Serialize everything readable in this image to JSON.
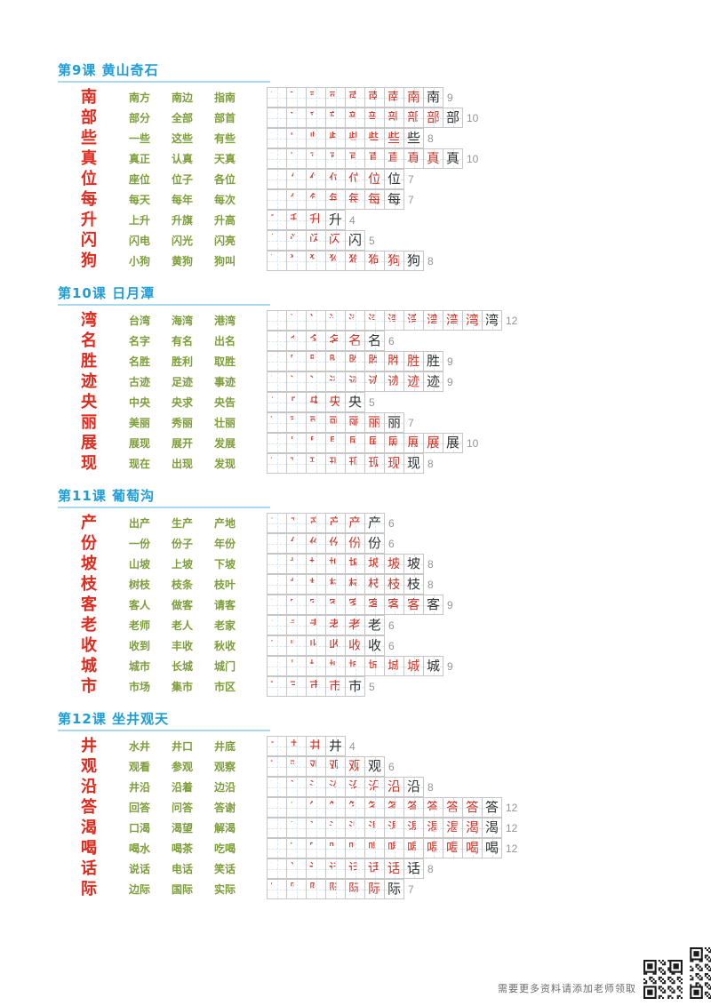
{
  "footer": {
    "text": "需要更多资料请添加老师领取"
  },
  "colors": {
    "title_blue": "#1d9ed9",
    "char_red": "#e02a1e",
    "word_green": "#7d9e3a",
    "stroke_red": "#d4382a",
    "final_black": "#333333",
    "count_gray": "#949494"
  },
  "sections": [
    {
      "title": "第9课 黄山奇石",
      "rows": [
        {
          "char": "南",
          "strokes": 9,
          "words": [
            "南方",
            "南边",
            "指南"
          ]
        },
        {
          "char": "部",
          "strokes": 10,
          "words": [
            "部分",
            "全部",
            "部首"
          ]
        },
        {
          "char": "些",
          "strokes": 8,
          "words": [
            "一些",
            "这些",
            "有些"
          ]
        },
        {
          "char": "真",
          "strokes": 10,
          "words": [
            "真正",
            "认真",
            "天真"
          ]
        },
        {
          "char": "位",
          "strokes": 7,
          "words": [
            "座位",
            "位子",
            "各位"
          ]
        },
        {
          "char": "每",
          "strokes": 7,
          "words": [
            "每天",
            "每年",
            "每次"
          ]
        },
        {
          "char": "升",
          "strokes": 4,
          "words": [
            "上升",
            "升旗",
            "升高"
          ]
        },
        {
          "char": "闪",
          "strokes": 5,
          "words": [
            "闪电",
            "闪光",
            "闪亮"
          ]
        },
        {
          "char": "狗",
          "strokes": 8,
          "words": [
            "小狗",
            "黄狗",
            "狗叫"
          ]
        }
      ]
    },
    {
      "title": "第10课 日月潭",
      "rows": [
        {
          "char": "湾",
          "strokes": 12,
          "words": [
            "台湾",
            "海湾",
            "港湾"
          ]
        },
        {
          "char": "名",
          "strokes": 6,
          "words": [
            "名字",
            "有名",
            "出名"
          ]
        },
        {
          "char": "胜",
          "strokes": 9,
          "words": [
            "名胜",
            "胜利",
            "取胜"
          ]
        },
        {
          "char": "迹",
          "strokes": 9,
          "words": [
            "古迹",
            "足迹",
            "事迹"
          ]
        },
        {
          "char": "央",
          "strokes": 5,
          "words": [
            "中央",
            "央求",
            "央告"
          ]
        },
        {
          "char": "丽",
          "strokes": 7,
          "words": [
            "美丽",
            "秀丽",
            "壮丽"
          ]
        },
        {
          "char": "展",
          "strokes": 10,
          "words": [
            "展现",
            "展开",
            "发展"
          ]
        },
        {
          "char": "现",
          "strokes": 8,
          "words": [
            "现在",
            "出现",
            "发现"
          ]
        }
      ]
    },
    {
      "title": "第11课 葡萄沟",
      "rows": [
        {
          "char": "产",
          "strokes": 6,
          "words": [
            "出产",
            "生产",
            "产地"
          ]
        },
        {
          "char": "份",
          "strokes": 6,
          "words": [
            "一份",
            "份子",
            "年份"
          ]
        },
        {
          "char": "坡",
          "strokes": 8,
          "words": [
            "山坡",
            "上坡",
            "下坡"
          ]
        },
        {
          "char": "枝",
          "strokes": 8,
          "words": [
            "树枝",
            "枝条",
            "枝叶"
          ]
        },
        {
          "char": "客",
          "strokes": 9,
          "words": [
            "客人",
            "做客",
            "请客"
          ]
        },
        {
          "char": "老",
          "strokes": 6,
          "words": [
            "老师",
            "老人",
            "老家"
          ]
        },
        {
          "char": "收",
          "strokes": 6,
          "words": [
            "收到",
            "丰收",
            "秋收"
          ]
        },
        {
          "char": "城",
          "strokes": 9,
          "words": [
            "城市",
            "长城",
            "城门"
          ]
        },
        {
          "char": "市",
          "strokes": 5,
          "words": [
            "市场",
            "集市",
            "市区"
          ]
        }
      ]
    },
    {
      "title": "第12课 坐井观天",
      "rows": [
        {
          "char": "井",
          "strokes": 4,
          "words": [
            "水井",
            "井口",
            "井底"
          ]
        },
        {
          "char": "观",
          "strokes": 6,
          "words": [
            "观看",
            "参观",
            "观察"
          ]
        },
        {
          "char": "沿",
          "strokes": 8,
          "words": [
            "井沿",
            "沿着",
            "边沿"
          ]
        },
        {
          "char": "答",
          "strokes": 12,
          "words": [
            "回答",
            "问答",
            "答谢"
          ]
        },
        {
          "char": "渴",
          "strokes": 12,
          "words": [
            "口渴",
            "渴望",
            "解渴"
          ]
        },
        {
          "char": "喝",
          "strokes": 12,
          "words": [
            "喝水",
            "喝茶",
            "吃喝"
          ]
        },
        {
          "char": "话",
          "strokes": 8,
          "words": [
            "说话",
            "电话",
            "笑话"
          ]
        },
        {
          "char": "际",
          "strokes": 7,
          "words": [
            "边际",
            "国际",
            "实际"
          ]
        }
      ]
    }
  ]
}
